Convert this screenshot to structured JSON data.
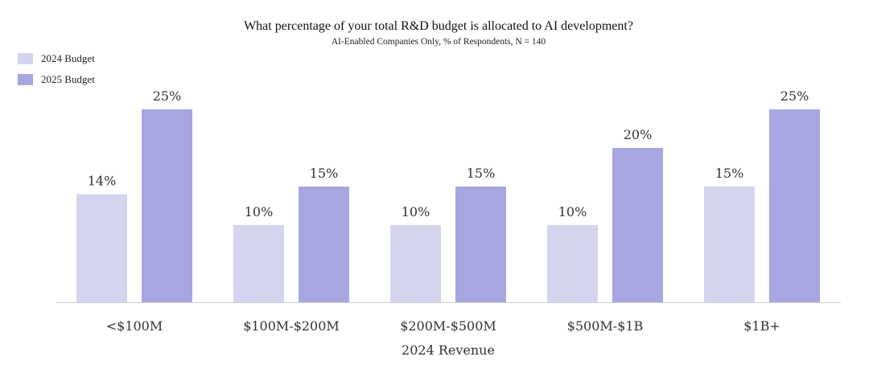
{
  "colors": {
    "budget_2024": "#d5d4ef",
    "budget_2025": "#a8a6e1",
    "axis": "#d0d0d0"
  },
  "chart_data": {
    "type": "bar",
    "title": "What percentage of your total R&D budget is allocated to AI development?",
    "subtitle": "AI-Enabled Companies Only,  % of Respondents, N = 140",
    "xlabel": "2024 Revenue",
    "ylabel": "",
    "categories": [
      "<$100M",
      "$100M-$200M",
      "$200M-$500M",
      "$500M-$1B",
      "$1B+"
    ],
    "series": [
      {
        "name": "2024 Budget",
        "values": [
          14,
          10,
          10,
          10,
          15
        ]
      },
      {
        "name": "2025 Budget",
        "values": [
          25,
          15,
          15,
          20,
          25
        ]
      }
    ],
    "value_suffix": "%",
    "ylim": [
      0,
      25
    ],
    "legend_position": "top-left",
    "grid": false
  }
}
